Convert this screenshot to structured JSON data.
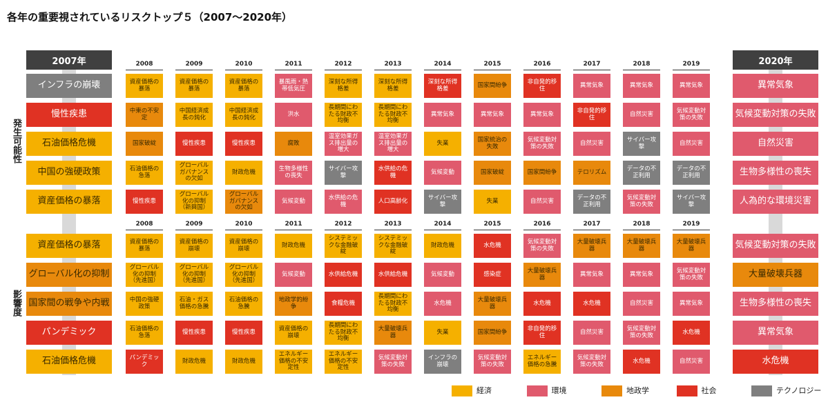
{
  "title": "各年の重要視されているリスクトップ５（2007～2020年）",
  "first_year": "2007年",
  "last_year": "2020年",
  "sections": [
    {
      "label": "発生可能性",
      "first": [
        {
          "text": "インフラの崩壊",
          "color": "#7f7f7f"
        },
        {
          "text": "慢性疾患",
          "color": "#e03223"
        },
        {
          "text": "石油価格危機",
          "color": "#f5b000"
        },
        {
          "text": "中国の強硬政策",
          "color": "#f5b000"
        },
        {
          "text": "資産価格の暴落",
          "color": "#f5b000"
        }
      ],
      "columns": [
        {
          "year": "2008",
          "cells": [
            {
              "text": "資産価格の暴落",
              "color": "#f5b000"
            },
            {
              "text": "中東の不安定",
              "color": "#e8890c"
            },
            {
              "text": "国家破綻",
              "color": "#e8890c"
            },
            {
              "text": "石油価格の急落",
              "color": "#f5b000"
            },
            {
              "text": "慢性疾患",
              "color": "#e03223"
            }
          ]
        },
        {
          "year": "2009",
          "cells": [
            {
              "text": "資産価格の暴落",
              "color": "#f5b000"
            },
            {
              "text": "中国経済成長の鈍化",
              "color": "#f5b000"
            },
            {
              "text": "慢性疾患",
              "color": "#e03223"
            },
            {
              "text": "グローバルガバナンスの欠如",
              "color": "#f5b000"
            },
            {
              "text": "グローバル化の抑制（新興国）",
              "color": "#f5b000"
            }
          ]
        },
        {
          "year": "2010",
          "cells": [
            {
              "text": "資産価格の暴落",
              "color": "#f5b000"
            },
            {
              "text": "中国経済成長の鈍化",
              "color": "#f5b000"
            },
            {
              "text": "慢性疾患",
              "color": "#e03223"
            },
            {
              "text": "財政危機",
              "color": "#f5b000"
            },
            {
              "text": "グローバルガバナンスの欠如",
              "color": "#e8890c"
            }
          ]
        },
        {
          "year": "2011",
          "cells": [
            {
              "text": "暴風雨・熱帯低気圧",
              "color": "#e05a6d"
            },
            {
              "text": "洪水",
              "color": "#e05a6d"
            },
            {
              "text": "腐敗",
              "color": "#e8890c"
            },
            {
              "text": "生物多様性の喪失",
              "color": "#e05a6d"
            },
            {
              "text": "気候変動",
              "color": "#e05a6d"
            }
          ]
        },
        {
          "year": "2012",
          "cells": [
            {
              "text": "深刻な所得格差",
              "color": "#f5b000"
            },
            {
              "text": "長期間にわたる財政不均衡",
              "color": "#f5b000"
            },
            {
              "text": "温室効果ガス排出量の増大",
              "color": "#e05a6d"
            },
            {
              "text": "サイバー攻撃",
              "color": "#7f7f7f"
            },
            {
              "text": "水供給の危機",
              "color": "#e05a6d"
            }
          ]
        },
        {
          "year": "2013",
          "cells": [
            {
              "text": "深刻な所得格差",
              "color": "#f5b000"
            },
            {
              "text": "長期間にわたる財政不均衡",
              "color": "#f5b000"
            },
            {
              "text": "温室効果ガス排出量の増大",
              "color": "#e05a6d"
            },
            {
              "text": "水供給の危機",
              "color": "#e03223"
            },
            {
              "text": "人口高齢化",
              "color": "#e03223"
            }
          ]
        },
        {
          "year": "2014",
          "cells": [
            {
              "text": "深刻な所得格差",
              "color": "#e03223"
            },
            {
              "text": "異常気象",
              "color": "#e05a6d"
            },
            {
              "text": "失業",
              "color": "#f5b000"
            },
            {
              "text": "気候変動",
              "color": "#e05a6d"
            },
            {
              "text": "サイバー攻撃",
              "color": "#7f7f7f"
            }
          ]
        },
        {
          "year": "2015",
          "cells": [
            {
              "text": "国家間紛争",
              "color": "#e8890c"
            },
            {
              "text": "異常気象",
              "color": "#e05a6d"
            },
            {
              "text": "国家統治の失敗",
              "color": "#e8890c"
            },
            {
              "text": "国家破綻",
              "color": "#e8890c"
            },
            {
              "text": "失業",
              "color": "#f5b000"
            }
          ]
        },
        {
          "year": "2016",
          "cells": [
            {
              "text": "非自発的移住",
              "color": "#e03223"
            },
            {
              "text": "異常気象",
              "color": "#e05a6d"
            },
            {
              "text": "気候変動対策の失敗",
              "color": "#e05a6d"
            },
            {
              "text": "国家間紛争",
              "color": "#e8890c"
            },
            {
              "text": "自然災害",
              "color": "#e05a6d"
            }
          ]
        },
        {
          "year": "2017",
          "cells": [
            {
              "text": "異常気象",
              "color": "#e05a6d"
            },
            {
              "text": "非自発的移住",
              "color": "#e03223"
            },
            {
              "text": "自然災害",
              "color": "#e05a6d"
            },
            {
              "text": "テロリズム",
              "color": "#e8890c"
            },
            {
              "text": "データの不正利用",
              "color": "#7f7f7f"
            }
          ]
        },
        {
          "year": "2018",
          "cells": [
            {
              "text": "異常気象",
              "color": "#e05a6d"
            },
            {
              "text": "自然災害",
              "color": "#e05a6d"
            },
            {
              "text": "サイバー攻撃",
              "color": "#7f7f7f"
            },
            {
              "text": "データの不正利用",
              "color": "#7f7f7f"
            },
            {
              "text": "気候変動対策の失敗",
              "color": "#e05a6d"
            }
          ]
        },
        {
          "year": "2019",
          "cells": [
            {
              "text": "異常気象",
              "color": "#e05a6d"
            },
            {
              "text": "気候変動対策の失敗",
              "color": "#e05a6d"
            },
            {
              "text": "自然災害",
              "color": "#e05a6d"
            },
            {
              "text": "データの不正利用",
              "color": "#7f7f7f"
            },
            {
              "text": "サイバー攻撃",
              "color": "#7f7f7f"
            }
          ]
        }
      ],
      "last": [
        {
          "text": "異常気象",
          "color": "#e05a6d"
        },
        {
          "text": "気候変動対策の失敗",
          "color": "#e05a6d"
        },
        {
          "text": "自然災害",
          "color": "#e05a6d"
        },
        {
          "text": "生物多様性の喪失",
          "color": "#e05a6d"
        },
        {
          "text": "人為的な環境災害",
          "color": "#e05a6d"
        }
      ]
    },
    {
      "label": "影響度",
      "first": [
        {
          "text": "資産価格の暴落",
          "color": "#f5b000"
        },
        {
          "text": "グローバル化の抑制",
          "color": "#e8890c"
        },
        {
          "text": "国家間の戦争や内戦",
          "color": "#e8890c"
        },
        {
          "text": "パンデミック",
          "color": "#e03223"
        },
        {
          "text": "石油価格危機",
          "color": "#f5b000"
        }
      ],
      "columns": [
        {
          "year": "2008",
          "cells": [
            {
              "text": "資産価格の暴落",
              "color": "#f5b000"
            },
            {
              "text": "グローバル化の抑制（先進国）",
              "color": "#f5b000"
            },
            {
              "text": "中国の強硬政策",
              "color": "#f5b000"
            },
            {
              "text": "石油価格の急落",
              "color": "#f5b000"
            },
            {
              "text": "パンデミック",
              "color": "#e03223"
            }
          ]
        },
        {
          "year": "2009",
          "cells": [
            {
              "text": "資産価格の崩壊",
              "color": "#f5b000"
            },
            {
              "text": "グローバル化の抑制（先進国）",
              "color": "#f5b000"
            },
            {
              "text": "石油・ガス価格の急騰",
              "color": "#f5b000"
            },
            {
              "text": "慢性疾患",
              "color": "#e03223"
            },
            {
              "text": "財政危機",
              "color": "#f5b000"
            }
          ]
        },
        {
          "year": "2010",
          "cells": [
            {
              "text": "資産価格の崩壊",
              "color": "#f5b000"
            },
            {
              "text": "グローバル化の抑制（先進国）",
              "color": "#f5b000"
            },
            {
              "text": "石油価格の急騰",
              "color": "#f5b000"
            },
            {
              "text": "慢性疾患",
              "color": "#e03223"
            },
            {
              "text": "財政危機",
              "color": "#f5b000"
            }
          ]
        },
        {
          "year": "2011",
          "cells": [
            {
              "text": "財政危機",
              "color": "#f5b000"
            },
            {
              "text": "気候変動",
              "color": "#e05a6d"
            },
            {
              "text": "地政学的紛争",
              "color": "#e8890c"
            },
            {
              "text": "資産価格の崩壊",
              "color": "#f5b000"
            },
            {
              "text": "エネルギー価格の不安定性",
              "color": "#f5b000"
            }
          ]
        },
        {
          "year": "2012",
          "cells": [
            {
              "text": "システミックな金融破綻",
              "color": "#f5b000"
            },
            {
              "text": "水供給危機",
              "color": "#e03223"
            },
            {
              "text": "食糧危機",
              "color": "#e03223"
            },
            {
              "text": "長期間にわたる財政不均衡",
              "color": "#f5b000"
            },
            {
              "text": "エネルギー価格の不安定性",
              "color": "#f5b000"
            }
          ]
        },
        {
          "year": "2013",
          "cells": [
            {
              "text": "システミックな金融破綻",
              "color": "#f5b000"
            },
            {
              "text": "水供給危機",
              "color": "#e03223"
            },
            {
              "text": "長期間にわたる財政不均衡",
              "color": "#f5b000"
            },
            {
              "text": "大量破壊兵器",
              "color": "#e8890c"
            },
            {
              "text": "気候変動対策の失敗",
              "color": "#e05a6d"
            }
          ]
        },
        {
          "year": "2014",
          "cells": [
            {
              "text": "財政危機",
              "color": "#f5b000"
            },
            {
              "text": "気候変動",
              "color": "#e05a6d"
            },
            {
              "text": "水危機",
              "color": "#e05a6d"
            },
            {
              "text": "失業",
              "color": "#f5b000"
            },
            {
              "text": "インフラの崩壊",
              "color": "#7f7f7f"
            }
          ]
        },
        {
          "year": "2015",
          "cells": [
            {
              "text": "水危機",
              "color": "#e03223"
            },
            {
              "text": "感染症",
              "color": "#e03223"
            },
            {
              "text": "大量破壊兵器",
              "color": "#e8890c"
            },
            {
              "text": "国家間紛争",
              "color": "#e8890c"
            },
            {
              "text": "気候変動対策の失敗",
              "color": "#e05a6d"
            }
          ]
        },
        {
          "year": "2016",
          "cells": [
            {
              "text": "気候変動対策の失敗",
              "color": "#e05a6d"
            },
            {
              "text": "大量破壊兵器",
              "color": "#e8890c"
            },
            {
              "text": "水危機",
              "color": "#e03223"
            },
            {
              "text": "非自発的移住",
              "color": "#e03223"
            },
            {
              "text": "エネルギー価格の急騰",
              "color": "#f5b000"
            }
          ]
        },
        {
          "year": "2017",
          "cells": [
            {
              "text": "大量破壊兵器",
              "color": "#e8890c"
            },
            {
              "text": "異常気象",
              "color": "#e05a6d"
            },
            {
              "text": "水危機",
              "color": "#e03223"
            },
            {
              "text": "自然災害",
              "color": "#e05a6d"
            },
            {
              "text": "気候変動対策の失敗",
              "color": "#e05a6d"
            }
          ]
        },
        {
          "year": "2018",
          "cells": [
            {
              "text": "大量破壊兵器",
              "color": "#e8890c"
            },
            {
              "text": "異常気象",
              "color": "#e05a6d"
            },
            {
              "text": "自然災害",
              "color": "#e05a6d"
            },
            {
              "text": "気候変動対策の失敗",
              "color": "#e05a6d"
            },
            {
              "text": "水危機",
              "color": "#e03223"
            }
          ]
        },
        {
          "year": "2019",
          "cells": [
            {
              "text": "大量破壊兵器",
              "color": "#e8890c"
            },
            {
              "text": "気候変動対策の失敗",
              "color": "#e05a6d"
            },
            {
              "text": "異常気象",
              "color": "#e05a6d"
            },
            {
              "text": "水危機",
              "color": "#e03223"
            },
            {
              "text": "自然災害",
              "color": "#e05a6d"
            }
          ]
        }
      ],
      "last": [
        {
          "text": "気候変動対策の失敗",
          "color": "#e05a6d"
        },
        {
          "text": "大量破壊兵器",
          "color": "#e8890c"
        },
        {
          "text": "生物多様性の喪失",
          "color": "#e05a6d"
        },
        {
          "text": "異常気象",
          "color": "#e05a6d"
        },
        {
          "text": "水危機",
          "color": "#e03223"
        }
      ]
    }
  ],
  "legend": [
    {
      "label": "経済",
      "color": "#f5b000"
    },
    {
      "label": "環境",
      "color": "#e05a6d"
    },
    {
      "label": "地政学",
      "color": "#e8890c"
    },
    {
      "label": "社会",
      "color": "#e03223"
    },
    {
      "label": "テクノロジー",
      "color": "#7f7f7f"
    }
  ]
}
